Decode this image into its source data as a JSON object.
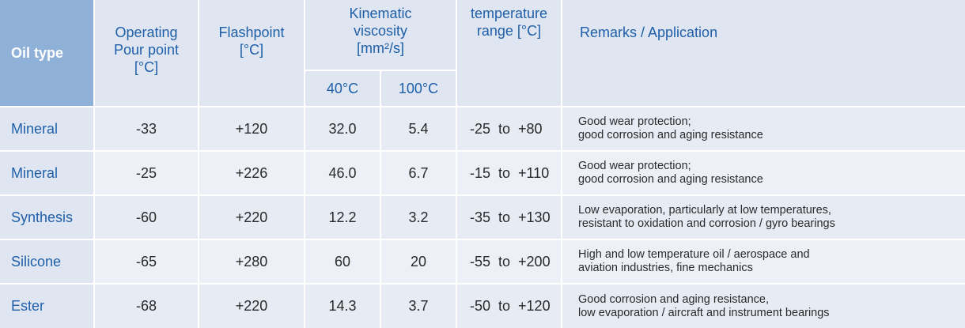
{
  "header": {
    "oil_type": "Oil type",
    "pour_point": [
      "Operating",
      "Pour point",
      "[°C]"
    ],
    "flashpoint": [
      "Flashpoint",
      "[°C]"
    ],
    "kinematic": [
      "Kinematic",
      "viscosity",
      "[mm²/s]"
    ],
    "visc_40": "40°C",
    "visc_100": "100°C",
    "temp_range": [
      "temperature",
      "range [°C]"
    ],
    "remarks": "Remarks / Application"
  },
  "rows": [
    {
      "oil": "Mineral",
      "pour": "-33",
      "flash": "+120",
      "v40": "32.0",
      "v100": "5.4",
      "range": "-25  to  +80",
      "remark1": "Good wear protection;",
      "remark2": "good corrosion and aging resistance"
    },
    {
      "oil": "Mineral",
      "pour": "-25",
      "flash": "+226",
      "v40": "46.0",
      "v100": "6.7",
      "range": "-15  to  +110",
      "remark1": "Good wear protection;",
      "remark2": "good corrosion and aging resistance"
    },
    {
      "oil": "Synthesis",
      "pour": "-60",
      "flash": "+220",
      "v40": "12.2",
      "v100": "3.2",
      "range": "-35  to  +130",
      "remark1": "Low evaporation, particularly at low temperatures,",
      "remark2": "resistant to oxidation and corrosion / gyro bearings"
    },
    {
      "oil": "Silicone",
      "pour": "-65",
      "flash": "+280",
      "v40": "60",
      "v100": "20",
      "range": "-55  to  +200",
      "remark1": "High and low temperature oil / aerospace and",
      "remark2": "aviation industries, fine mechanics"
    },
    {
      "oil": "Ester",
      "pour": "-68",
      "flash": "+220",
      "v40": "14.3",
      "v100": "3.7",
      "range": "-50  to  +120",
      "remark1": "Good corrosion and aging resistance,",
      "remark2": "low evaporation / aircraft and instrument bearings"
    }
  ]
}
